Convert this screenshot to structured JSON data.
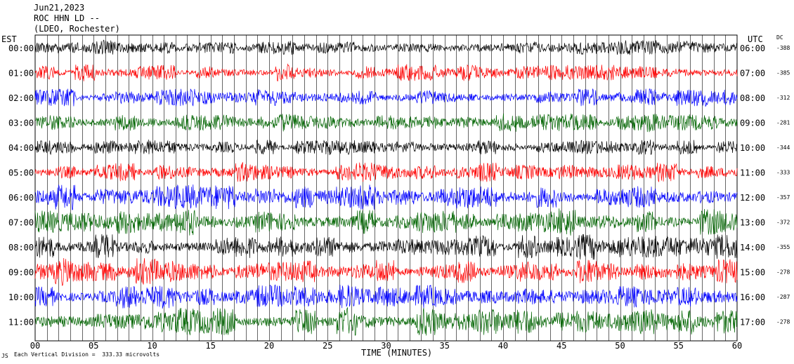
{
  "header": {
    "date": "Jun21,2023",
    "station": "ROC HHN LD --",
    "network": "(LDEO, Rochester)"
  },
  "left_axis_label": "EST",
  "right_axis_label": "UTC",
  "dc_label": "DC",
  "x_axis_title": "TIME (MINUTES)",
  "footer_note": "Each Vertical Division =  333.33 microvolts",
  "footer_mark": "JS",
  "chart_data": {
    "type": "line",
    "title": "Jun21,2023 ROC HHN LD -- (LDEO, Rochester)",
    "xlabel": "TIME (MINUTES)",
    "xlim": [
      0,
      60
    ],
    "x_ticks": [
      "00",
      "05",
      "10",
      "15",
      "20",
      "25",
      "30",
      "35",
      "40",
      "45",
      "50",
      "55",
      "60"
    ],
    "grid": "vertical lines every minute",
    "rows": [
      {
        "est": "00:00",
        "utc": "06:00",
        "dc": "-388",
        "color": "#000000",
        "amplitude": 0.45
      },
      {
        "est": "01:00",
        "utc": "07:00",
        "dc": "-385",
        "color": "#ff0000",
        "amplitude": 0.5
      },
      {
        "est": "02:00",
        "utc": "08:00",
        "dc": "-312",
        "color": "#0000ff",
        "amplitude": 0.55
      },
      {
        "est": "03:00",
        "utc": "09:00",
        "dc": "-281",
        "color": "#006400",
        "amplitude": 0.6
      },
      {
        "est": "04:00",
        "utc": "10:00",
        "dc": "-344",
        "color": "#000000",
        "amplitude": 0.45
      },
      {
        "est": "05:00",
        "utc": "11:00",
        "dc": "-333",
        "color": "#ff0000",
        "amplitude": 0.6
      },
      {
        "est": "06:00",
        "utc": "12:00",
        "dc": "-357",
        "color": "#0000ff",
        "amplitude": 0.75
      },
      {
        "est": "07:00",
        "utc": "13:00",
        "dc": "-372",
        "color": "#006400",
        "amplitude": 0.8
      },
      {
        "est": "08:00",
        "utc": "14:00",
        "dc": "-355",
        "color": "#000000",
        "amplitude": 0.75
      },
      {
        "est": "09:00",
        "utc": "15:00",
        "dc": "-278",
        "color": "#ff0000",
        "amplitude": 0.8
      },
      {
        "est": "10:00",
        "utc": "16:00",
        "dc": "-287",
        "color": "#0000ff",
        "amplitude": 0.7
      },
      {
        "est": "11:00",
        "utc": "17:00",
        "dc": "-278",
        "color": "#006400",
        "amplitude": 0.85
      }
    ]
  }
}
